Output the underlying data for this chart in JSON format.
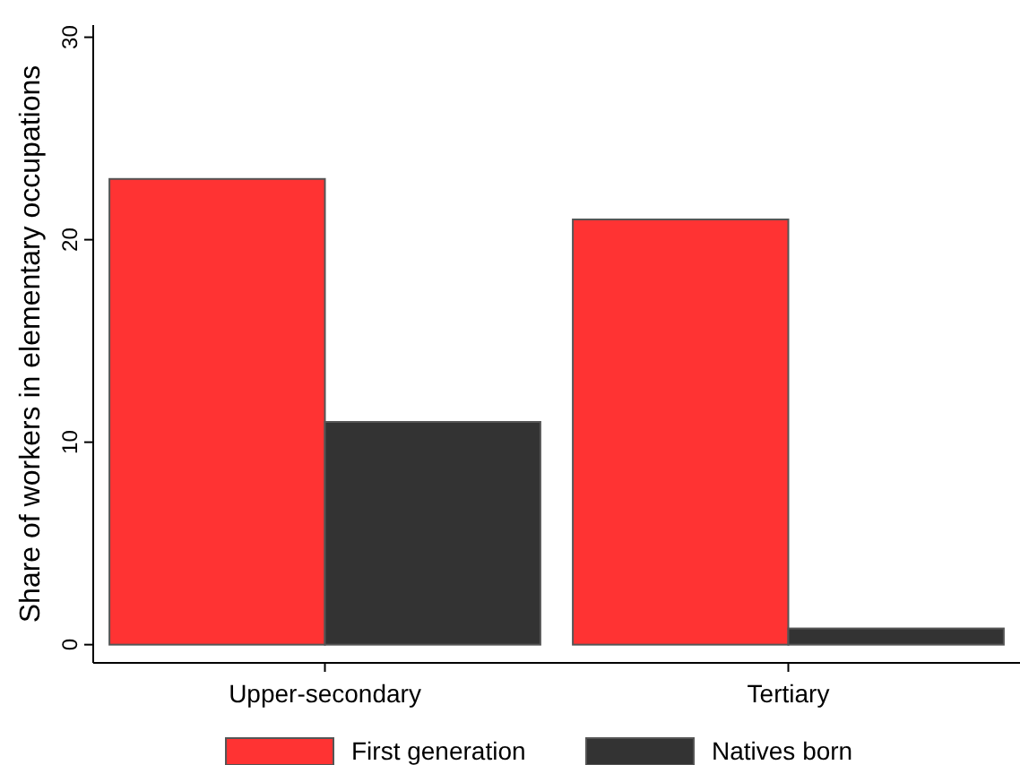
{
  "chart_data": {
    "type": "bar",
    "ylabel": "Share of workers in elementary occupations",
    "categories": [
      "Upper-secondary",
      "Tertiary"
    ],
    "series": [
      {
        "name": "First generation",
        "color": "#ff3333",
        "values": [
          23,
          21
        ]
      },
      {
        "name": "Natives born",
        "color": "#333333",
        "values": [
          11,
          0.8
        ]
      }
    ],
    "ylim": [
      -0.9,
      30.6
    ],
    "yticks": [
      0,
      10,
      20,
      30
    ],
    "grid": false,
    "legend": "bottom"
  }
}
